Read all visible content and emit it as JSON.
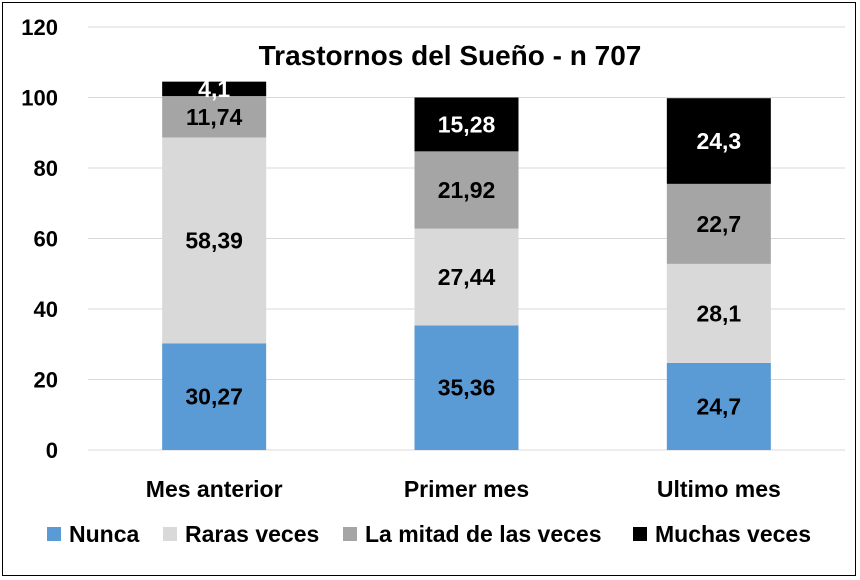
{
  "chart_data": {
    "type": "bar",
    "stacked": true,
    "title": "Trastornos del Sueño - n 707",
    "xlabel": "",
    "ylabel": "",
    "categories": [
      "Mes anterior",
      "Primer mes",
      "Ultimo mes"
    ],
    "ylim": [
      0,
      120
    ],
    "yticks": [
      0,
      20,
      40,
      60,
      80,
      100,
      120
    ],
    "grid": true,
    "legend_position": "bottom",
    "series": [
      {
        "name": "Nunca",
        "color": "#5b9bd5",
        "values": [
          30.27,
          35.36,
          24.7
        ],
        "labels": [
          "30,27",
          "35,36",
          "24,7"
        ],
        "label_color": "#000000"
      },
      {
        "name": "Raras veces",
        "color": "#d9d9d9",
        "values": [
          58.39,
          27.44,
          28.1
        ],
        "labels": [
          "58,39",
          "27,44",
          "28,1"
        ],
        "label_color": "#000000"
      },
      {
        "name": "La mitad de las veces",
        "color": "#a5a5a5",
        "values": [
          11.74,
          21.92,
          22.7
        ],
        "labels": [
          "11,74",
          "21,92",
          "22,7"
        ],
        "label_color": "#000000"
      },
      {
        "name": "Muchas veces",
        "color": "#000000",
        "values": [
          4.1,
          15.28,
          24.3
        ],
        "labels": [
          "4,1",
          "15,28",
          "24,3"
        ],
        "label_color": "#ffffff"
      }
    ]
  }
}
